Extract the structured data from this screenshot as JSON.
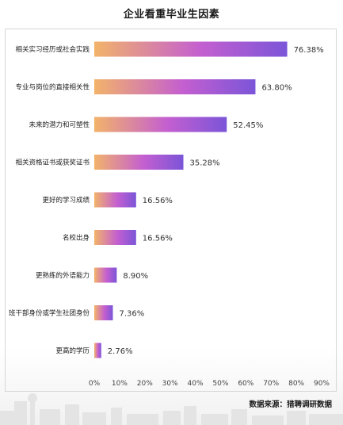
{
  "chart_data": {
    "type": "bar",
    "orientation": "horizontal",
    "title": "企业看重毕业生因素",
    "categories": [
      "相关实习经历或社会实践",
      "专业与岗位的直接相关性",
      "未来的潜力和可塑性",
      "相关资格证书或获奖证书",
      "更好的学习成绩",
      "名校出身",
      "更熟练的外语能力",
      "班干部身份或学生社团身份",
      "更高的学历"
    ],
    "values": [
      76.38,
      63.8,
      52.45,
      35.28,
      16.56,
      16.56,
      8.9,
      7.36,
      2.76
    ],
    "value_labels": [
      "76.38%",
      "63.80%",
      "52.45%",
      "35.28%",
      "16.56%",
      "16.56%",
      "8.90%",
      "7.36%",
      "2.76%"
    ],
    "xlim": [
      0,
      90
    ],
    "xticks": [
      "0%",
      "10%",
      "20%",
      "30%",
      "40%",
      "50%",
      "60%",
      "70%",
      "80%",
      "90%"
    ],
    "xlabel": "",
    "ylabel": "",
    "grid": false,
    "legend": "none",
    "bar_gradient": [
      "#f2b36a",
      "#c45fd0",
      "#7b55d8"
    ]
  },
  "source": "数据来源：猎聘调研数据"
}
